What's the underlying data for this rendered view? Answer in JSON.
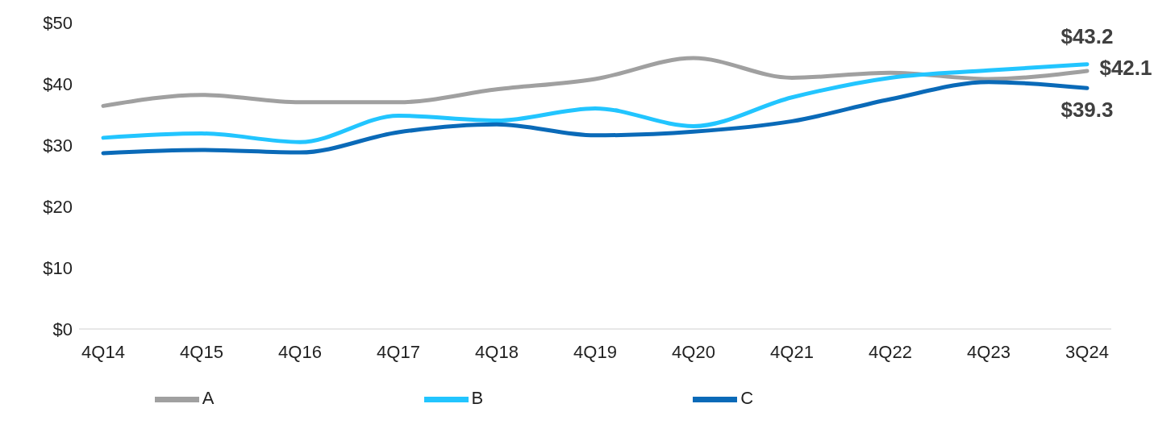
{
  "chart_data": {
    "type": "line",
    "categories": [
      "4Q14",
      "4Q15",
      "4Q16",
      "4Q17",
      "4Q18",
      "4Q19",
      "4Q20",
      "4Q21",
      "4Q22",
      "4Q23",
      "3Q24"
    ],
    "series": [
      {
        "name": "A",
        "color": "#a0a0a0",
        "values": [
          36.4,
          38.2,
          37.0,
          37.0,
          39.1,
          40.8,
          44.2,
          41.0,
          41.8,
          40.8,
          42.1
        ],
        "value_labels": [
          null,
          null,
          null,
          null,
          null,
          null,
          null,
          null,
          null,
          null,
          "$42.1"
        ]
      },
      {
        "name": "B",
        "color": "#22c5ff",
        "values": [
          31.2,
          31.9,
          30.5,
          34.8,
          34.0,
          36.0,
          33.1,
          37.8,
          41.0,
          42.2,
          43.2
        ],
        "value_labels": [
          null,
          null,
          null,
          null,
          null,
          null,
          null,
          null,
          null,
          null,
          "$43.2"
        ]
      },
      {
        "name": "C",
        "color": "#0a6ab8",
        "values": [
          28.7,
          29.2,
          28.8,
          32.1,
          33.4,
          31.6,
          32.2,
          33.9,
          37.5,
          40.3,
          39.3
        ],
        "value_labels": [
          null,
          null,
          null,
          null,
          null,
          null,
          null,
          null,
          null,
          null,
          "$39.3"
        ]
      }
    ],
    "ylim": [
      0,
      50
    ],
    "yticks": [
      {
        "value": 0,
        "label": "$0"
      },
      {
        "value": 10,
        "label": "$10"
      },
      {
        "value": 20,
        "label": "$20"
      },
      {
        "value": 30,
        "label": "$30"
      },
      {
        "value": 40,
        "label": "$40"
      },
      {
        "value": 50,
        "label": "$50"
      }
    ],
    "grid": false,
    "legend": "bottom",
    "marker": "none",
    "line_style": "solid"
  }
}
